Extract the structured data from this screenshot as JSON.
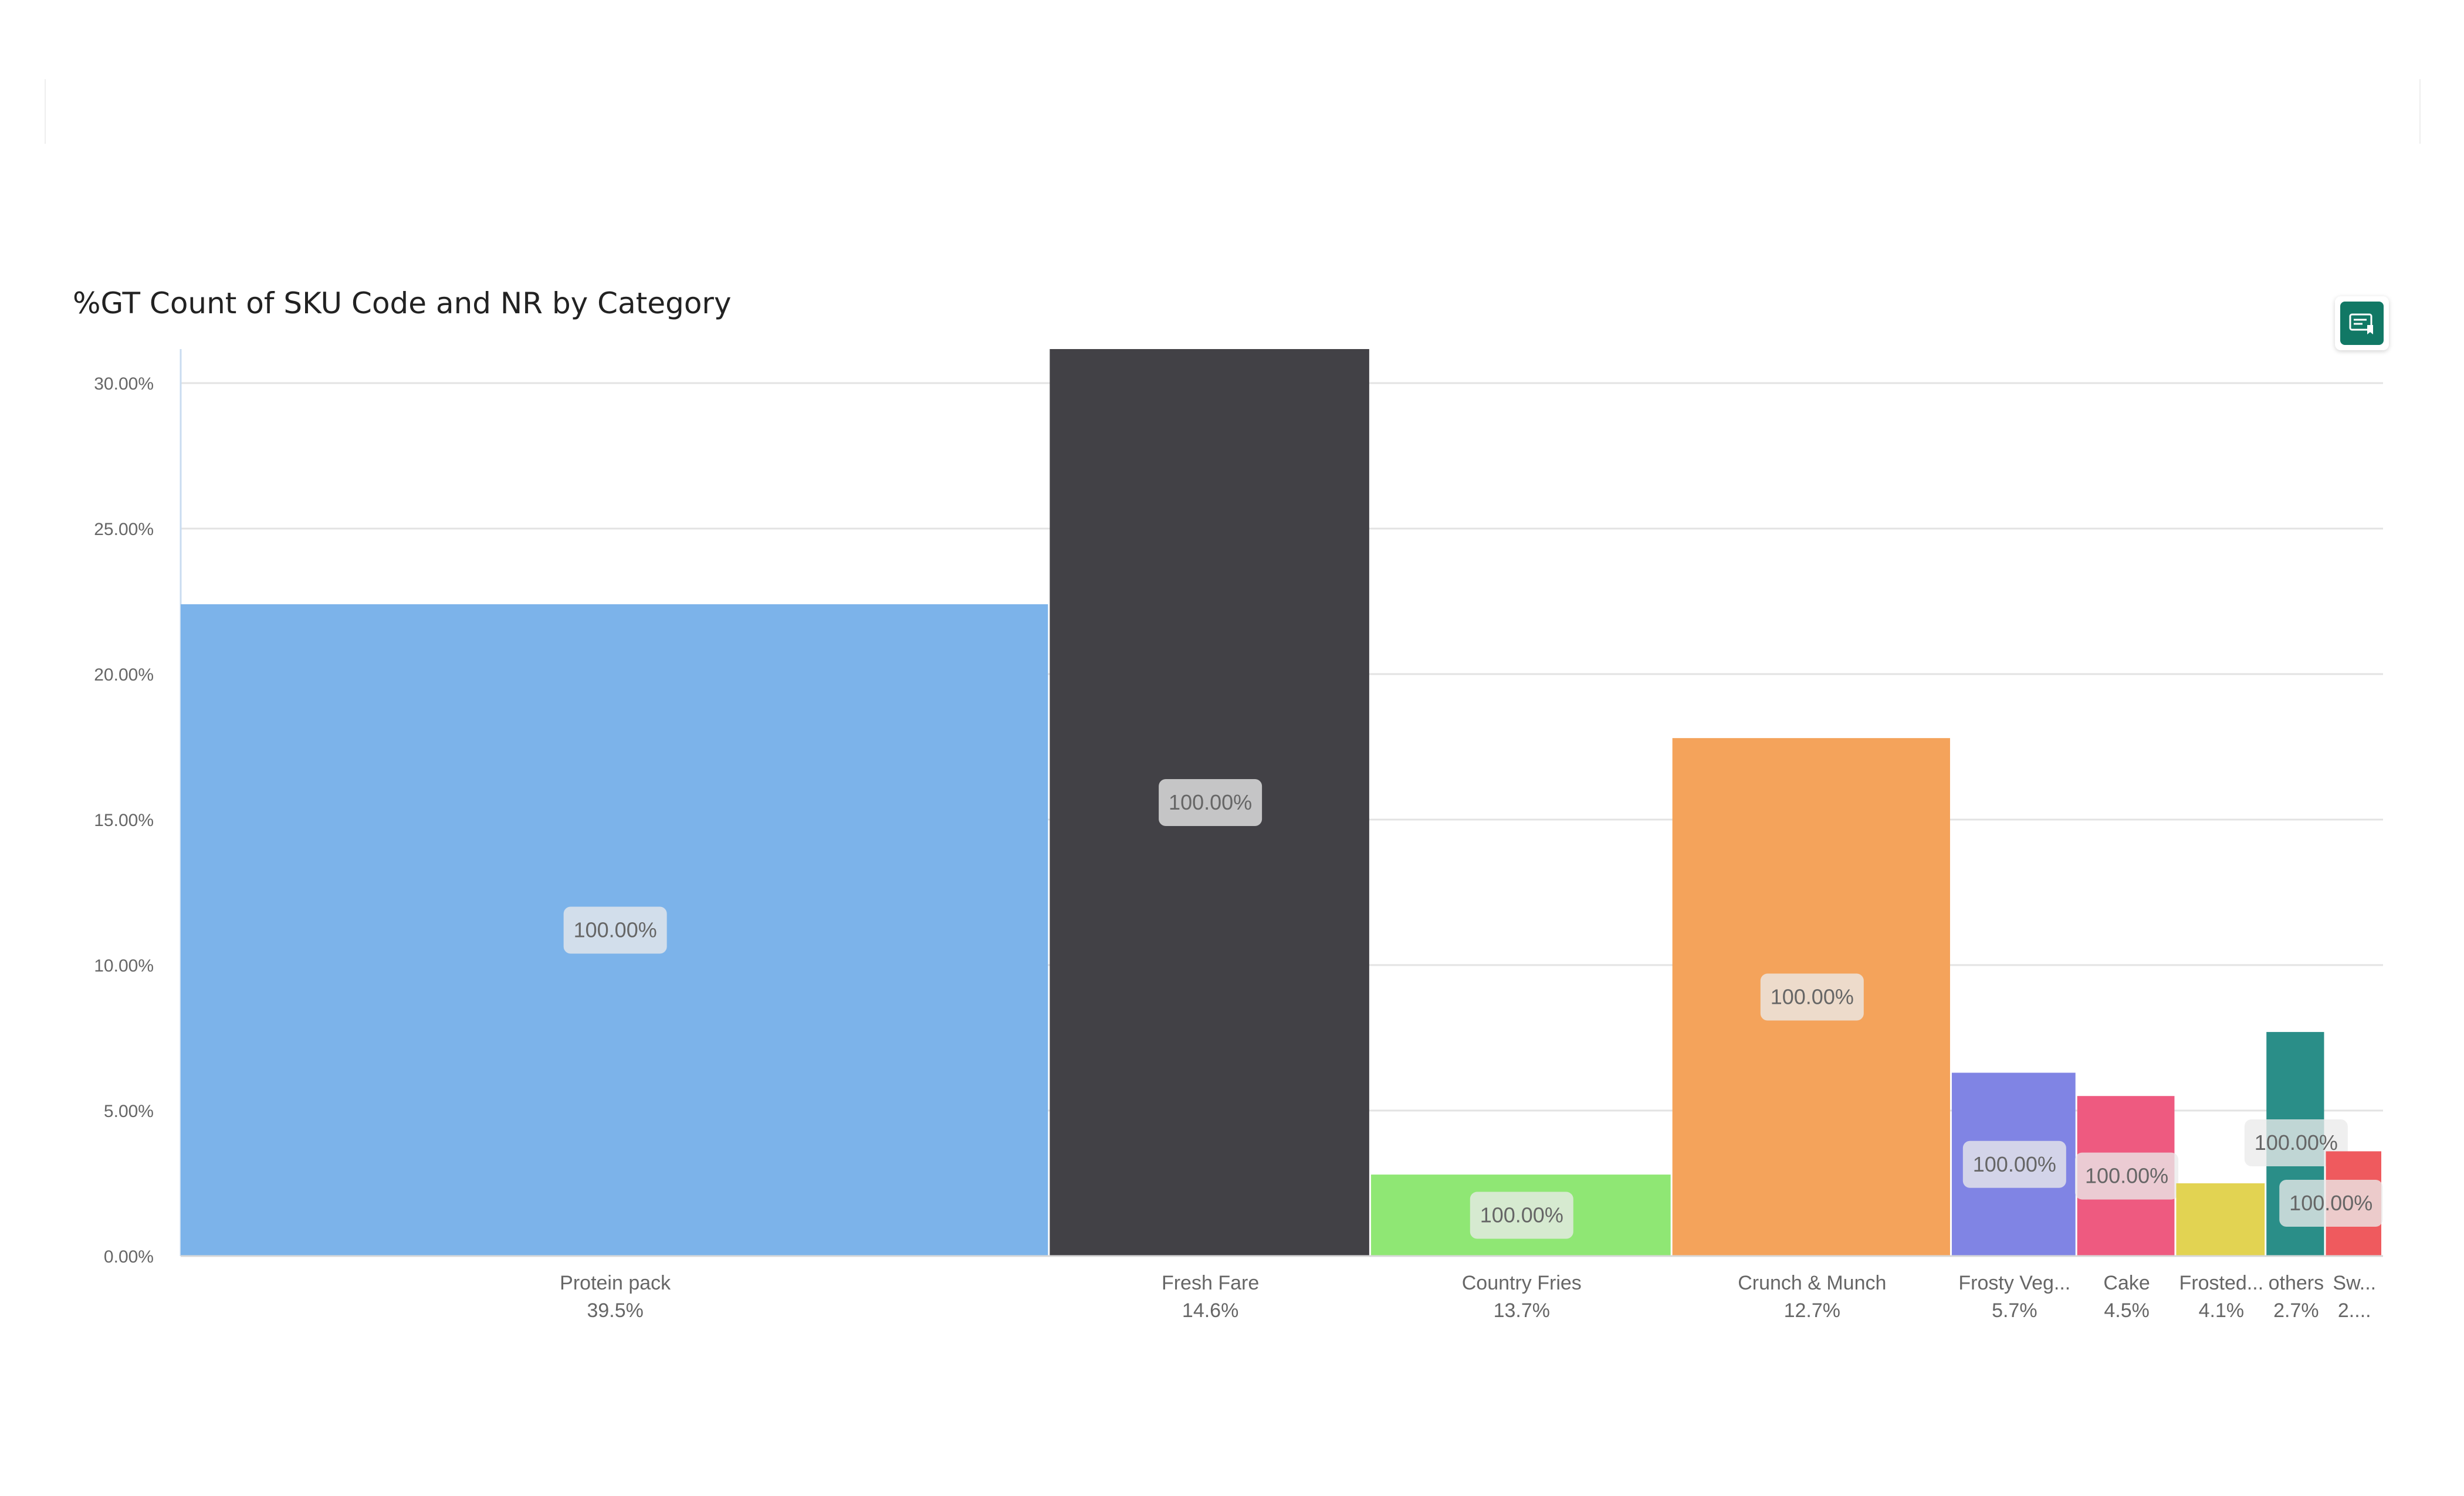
{
  "visual": {
    "title": "%GT Count of SKU Code and NR by Category",
    "action_icon": "smart-narrative-icon",
    "action_color": "#117865"
  },
  "chart_data": {
    "type": "bar",
    "subtype": "variable-width (mekko)",
    "title": "%GT Count of SKU Code and NR by Category",
    "xlabel": "",
    "ylabel": "",
    "ylim": [
      0,
      30
    ],
    "yticks": [
      "0.00%",
      "5.00%",
      "10.00%",
      "15.00%",
      "20.00%",
      "25.00%",
      "30.00%"
    ],
    "grid": true,
    "series": [
      {
        "category": "Protein pack",
        "short_label": "Protein pack",
        "width_label": "39.5%",
        "width": 39.5,
        "height": 22.4,
        "label": "100.00%",
        "color": "#7CB3EA"
      },
      {
        "category": "Fresh Fare",
        "short_label": "Fresh Fare",
        "width_label": "14.6%",
        "width": 14.6,
        "height": 31.2,
        "label": "100.00%",
        "color": "#424146"
      },
      {
        "category": "Country Fries",
        "short_label": "Country Fries",
        "width_label": "13.7%",
        "width": 13.7,
        "height": 2.8,
        "label": "100.00%",
        "color": "#8FE774"
      },
      {
        "category": "Crunch & Munch",
        "short_label": "Crunch & Munch",
        "width_label": "12.7%",
        "width": 12.7,
        "height": 17.8,
        "label": "100.00%",
        "color": "#F4A35B"
      },
      {
        "category": "Frosty Veg",
        "short_label": "Frosty Veg...",
        "width_label": "5.7%",
        "width": 5.7,
        "height": 6.3,
        "label": "100.00%",
        "color": "#8084E4"
      },
      {
        "category": "Cake",
        "short_label": "Cake",
        "width_label": "4.5%",
        "width": 4.5,
        "height": 5.5,
        "label": "100.00%",
        "color": "#EE5A80"
      },
      {
        "category": "Frosted",
        "short_label": "Frosted...",
        "width_label": "4.1%",
        "width": 4.1,
        "height": 2.5,
        "label": "",
        "color": "#E2D352"
      },
      {
        "category": "others",
        "short_label": "others",
        "width_label": "2.7%",
        "width": 2.7,
        "height": 7.7,
        "label": "100.00%",
        "color": "#2A8E88"
      },
      {
        "category": "Sw",
        "short_label": "Sw...",
        "width_label": "2....",
        "width": 2.6,
        "height": 3.6,
        "label": "100.00%",
        "color": "#EF5A5E"
      }
    ]
  }
}
